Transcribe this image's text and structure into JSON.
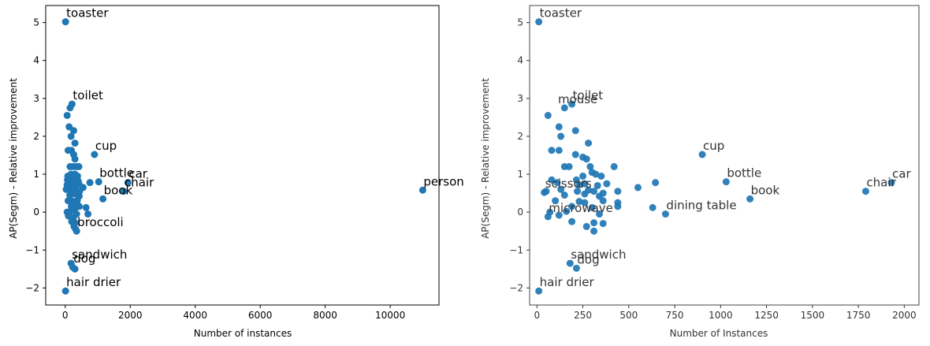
{
  "colors": {
    "point": "#1f77b4",
    "axis": "#000000",
    "text": "#000000"
  },
  "chart_data": [
    {
      "type": "scatter",
      "xlabel": "Number of instances",
      "ylabel": "AP(Segm) - Relative improvement",
      "xlim": [
        -600,
        11500
      ],
      "ylim": [
        -2.45,
        5.45
      ],
      "xticks": [
        0,
        2000,
        4000,
        6000,
        8000,
        10000
      ],
      "yticks": [
        -2,
        -1,
        0,
        1,
        2,
        3,
        4,
        5
      ],
      "grid": false,
      "points": [
        {
          "x": 10,
          "y": 5.02
        },
        {
          "x": 150,
          "y": 2.75
        },
        {
          "x": 210,
          "y": 2.85
        },
        {
          "x": 60,
          "y": 2.55
        },
        {
          "x": 120,
          "y": 2.25
        },
        {
          "x": 260,
          "y": 2.15
        },
        {
          "x": 180,
          "y": 2.0
        },
        {
          "x": 300,
          "y": 1.82
        },
        {
          "x": 90,
          "y": 1.63
        },
        {
          "x": 190,
          "y": 1.63
        },
        {
          "x": 260,
          "y": 1.52
        },
        {
          "x": 300,
          "y": 1.4
        },
        {
          "x": 150,
          "y": 1.2
        },
        {
          "x": 250,
          "y": 1.2
        },
        {
          "x": 350,
          "y": 1.2
        },
        {
          "x": 420,
          "y": 1.2
        },
        {
          "x": 80,
          "y": 0.95
        },
        {
          "x": 180,
          "y": 1.0
        },
        {
          "x": 300,
          "y": 1.0
        },
        {
          "x": 380,
          "y": 0.95
        },
        {
          "x": 70,
          "y": 0.85
        },
        {
          "x": 130,
          "y": 0.82
        },
        {
          "x": 230,
          "y": 0.85
        },
        {
          "x": 320,
          "y": 0.8
        },
        {
          "x": 400,
          "y": 0.82
        },
        {
          "x": 60,
          "y": 0.72
        },
        {
          "x": 200,
          "y": 0.7
        },
        {
          "x": 260,
          "y": 0.72
        },
        {
          "x": 340,
          "y": 0.7
        },
        {
          "x": 420,
          "y": 0.75
        },
        {
          "x": 30,
          "y": 0.6
        },
        {
          "x": 110,
          "y": 0.62
        },
        {
          "x": 230,
          "y": 0.55
        },
        {
          "x": 300,
          "y": 0.58
        },
        {
          "x": 380,
          "y": 0.55
        },
        {
          "x": 440,
          "y": 0.55
        },
        {
          "x": 140,
          "y": 0.45
        },
        {
          "x": 300,
          "y": 0.48
        },
        {
          "x": 430,
          "y": 0.42
        },
        {
          "x": 90,
          "y": 0.3
        },
        {
          "x": 200,
          "y": 0.3
        },
        {
          "x": 260,
          "y": 0.25
        },
        {
          "x": 370,
          "y": 0.3
        },
        {
          "x": 190,
          "y": 0.15
        },
        {
          "x": 300,
          "y": 0.1
        },
        {
          "x": 430,
          "y": 0.15
        },
        {
          "x": 60,
          "y": 0.0
        },
        {
          "x": 160,
          "y": 0.02
        },
        {
          "x": 350,
          "y": -0.05
        },
        {
          "x": 100,
          "y": -0.1
        },
        {
          "x": 250,
          "y": -0.15
        },
        {
          "x": 200,
          "y": -0.25
        },
        {
          "x": 300,
          "y": -0.28
        },
        {
          "x": 270,
          "y": -0.38
        },
        {
          "x": 320,
          "y": -0.45
        },
        {
          "x": 350,
          "y": -0.5
        },
        {
          "x": 180,
          "y": -1.35
        },
        {
          "x": 230,
          "y": -1.45
        },
        {
          "x": 300,
          "y": -1.5
        },
        {
          "x": 10,
          "y": -2.08
        },
        {
          "x": 900,
          "y": 1.52
        },
        {
          "x": 1030,
          "y": 0.8
        },
        {
          "x": 1160,
          "y": 0.35
        },
        {
          "x": 1800,
          "y": 0.55
        },
        {
          "x": 1930,
          "y": 0.78
        },
        {
          "x": 640,
          "y": 0.12
        },
        {
          "x": 700,
          "y": -0.05
        },
        {
          "x": 550,
          "y": 0.65
        },
        {
          "x": 760,
          "y": 0.78
        },
        {
          "x": 11000,
          "y": 0.58
        }
      ],
      "annotations": [
        {
          "text": "toaster",
          "x": 10,
          "y": 5.02
        },
        {
          "text": "toilet",
          "x": 210,
          "y": 2.85
        },
        {
          "text": "cup",
          "x": 900,
          "y": 1.52
        },
        {
          "text": "bottle",
          "x": 1030,
          "y": 0.8
        },
        {
          "text": "car",
          "x": 1930,
          "y": 0.78
        },
        {
          "text": "chair",
          "x": 1800,
          "y": 0.55
        },
        {
          "text": "book",
          "x": 1160,
          "y": 0.35
        },
        {
          "text": "person",
          "x": 11000,
          "y": 0.58
        },
        {
          "text": "broccoli",
          "x": 350,
          "y": -0.5
        },
        {
          "text": "sandwich",
          "x": 180,
          "y": -1.35
        },
        {
          "text": "dog",
          "x": 230,
          "y": -1.45
        },
        {
          "text": "hair drier",
          "x": 10,
          "y": -2.08
        }
      ]
    },
    {
      "type": "scatter",
      "xlabel": "Number of Instances",
      "ylabel": "AP(Segm) - Relative improvement",
      "xlim": [
        -40,
        2080
      ],
      "ylim": [
        -2.45,
        5.45
      ],
      "xticks": [
        0,
        250,
        500,
        750,
        1000,
        1250,
        1500,
        1750,
        2000
      ],
      "yticks": [
        -2,
        -1,
        0,
        1,
        2,
        3,
        4,
        5
      ],
      "grid": false,
      "points": [
        {
          "x": 10,
          "y": 5.02
        },
        {
          "x": 150,
          "y": 2.75
        },
        {
          "x": 190,
          "y": 2.85
        },
        {
          "x": 60,
          "y": 2.55
        },
        {
          "x": 120,
          "y": 2.25
        },
        {
          "x": 210,
          "y": 2.15
        },
        {
          "x": 130,
          "y": 2.0
        },
        {
          "x": 280,
          "y": 1.82
        },
        {
          "x": 80,
          "y": 1.63
        },
        {
          "x": 120,
          "y": 1.63
        },
        {
          "x": 210,
          "y": 1.52
        },
        {
          "x": 250,
          "y": 1.45
        },
        {
          "x": 270,
          "y": 1.4
        },
        {
          "x": 150,
          "y": 1.2
        },
        {
          "x": 175,
          "y": 1.2
        },
        {
          "x": 290,
          "y": 1.2
        },
        {
          "x": 420,
          "y": 1.2
        },
        {
          "x": 80,
          "y": 0.85
        },
        {
          "x": 110,
          "y": 0.78
        },
        {
          "x": 215,
          "y": 0.85
        },
        {
          "x": 250,
          "y": 0.95
        },
        {
          "x": 300,
          "y": 1.05
        },
        {
          "x": 320,
          "y": 1.0
        },
        {
          "x": 350,
          "y": 0.95
        },
        {
          "x": 230,
          "y": 0.72
        },
        {
          "x": 260,
          "y": 0.75
        },
        {
          "x": 330,
          "y": 0.7
        },
        {
          "x": 380,
          "y": 0.75
        },
        {
          "x": 50,
          "y": 0.55
        },
        {
          "x": 130,
          "y": 0.6
        },
        {
          "x": 220,
          "y": 0.55
        },
        {
          "x": 280,
          "y": 0.58
        },
        {
          "x": 310,
          "y": 0.55
        },
        {
          "x": 360,
          "y": 0.5
        },
        {
          "x": 440,
          "y": 0.55
        },
        {
          "x": 150,
          "y": 0.45
        },
        {
          "x": 260,
          "y": 0.48
        },
        {
          "x": 340,
          "y": 0.42
        },
        {
          "x": 100,
          "y": 0.3
        },
        {
          "x": 230,
          "y": 0.28
        },
        {
          "x": 260,
          "y": 0.25
        },
        {
          "x": 360,
          "y": 0.3
        },
        {
          "x": 440,
          "y": 0.25
        },
        {
          "x": 190,
          "y": 0.15
        },
        {
          "x": 300,
          "y": 0.12
        },
        {
          "x": 440,
          "y": 0.15
        },
        {
          "x": 70,
          "y": 0.0
        },
        {
          "x": 160,
          "y": 0.02
        },
        {
          "x": 60,
          "y": -0.12
        },
        {
          "x": 120,
          "y": -0.08
        },
        {
          "x": 340,
          "y": -0.05
        },
        {
          "x": 190,
          "y": -0.25
        },
        {
          "x": 310,
          "y": -0.28
        },
        {
          "x": 270,
          "y": -0.38
        },
        {
          "x": 360,
          "y": -0.3
        },
        {
          "x": 310,
          "y": -0.5
        },
        {
          "x": 180,
          "y": -1.35
        },
        {
          "x": 215,
          "y": -1.48
        },
        {
          "x": 10,
          "y": -2.08
        },
        {
          "x": 900,
          "y": 1.52
        },
        {
          "x": 1030,
          "y": 0.8
        },
        {
          "x": 1160,
          "y": 0.35
        },
        {
          "x": 1790,
          "y": 0.55
        },
        {
          "x": 1930,
          "y": 0.78
        },
        {
          "x": 630,
          "y": 0.12
        },
        {
          "x": 700,
          "y": -0.05
        },
        {
          "x": 550,
          "y": 0.65
        },
        {
          "x": 645,
          "y": 0.78
        },
        {
          "x": 40,
          "y": 0.52
        }
      ],
      "annotations": [
        {
          "text": "toaster",
          "x": 10,
          "y": 5.02
        },
        {
          "text": "toilet",
          "x": 190,
          "y": 2.85
        },
        {
          "text": "mouse",
          "x": 110,
          "y": 2.75
        },
        {
          "text": "cup",
          "x": 900,
          "y": 1.52
        },
        {
          "text": "bottle",
          "x": 1030,
          "y": 0.8
        },
        {
          "text": "car",
          "x": 1930,
          "y": 0.78
        },
        {
          "text": "chair",
          "x": 1790,
          "y": 0.55
        },
        {
          "text": "book",
          "x": 1160,
          "y": 0.35
        },
        {
          "text": "scissors",
          "x": 40,
          "y": 0.52
        },
        {
          "text": "dining table",
          "x": 700,
          "y": -0.05
        },
        {
          "text": "microwave",
          "x": 60,
          "y": -0.12
        },
        {
          "text": "sandwich",
          "x": 180,
          "y": -1.35
        },
        {
          "text": "dog",
          "x": 215,
          "y": -1.48
        },
        {
          "text": "hair drier",
          "x": 10,
          "y": -2.08
        }
      ]
    }
  ]
}
